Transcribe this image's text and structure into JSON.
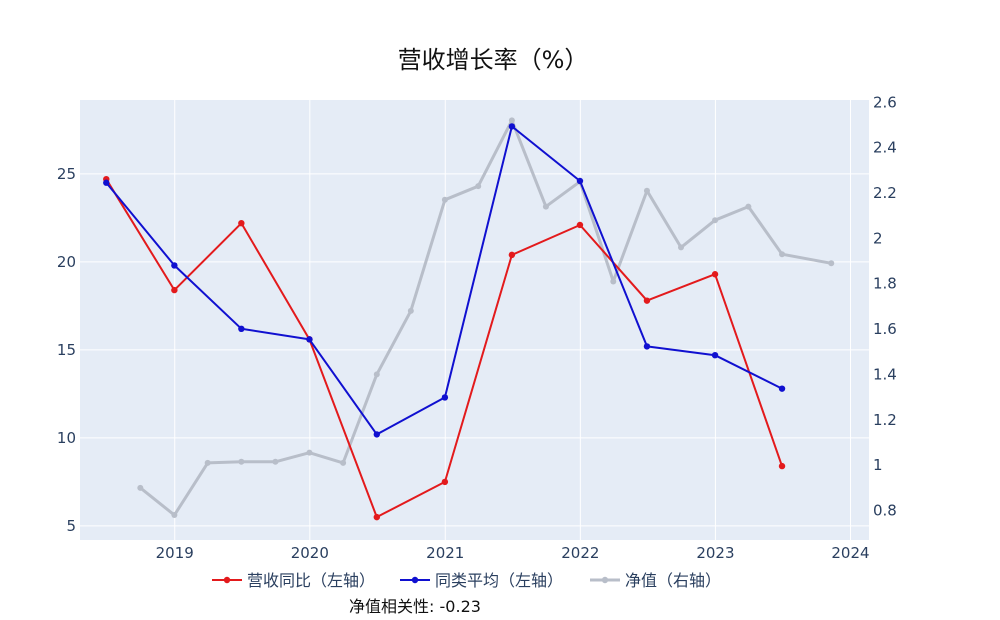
{
  "chart_data": {
    "type": "line",
    "title": "营收增长率（%）",
    "annotation": "净值相关性: -0.23",
    "x_axis": {
      "type": "date",
      "ticks": [
        "2019",
        "2020",
        "2021",
        "2022",
        "2023",
        "2024"
      ],
      "range": [
        "2018-04-20",
        "2024-02-20"
      ]
    },
    "y_left": {
      "ticks": [
        "5",
        "10",
        "15",
        "20",
        "25"
      ],
      "range": [
        4.2,
        29.2
      ]
    },
    "y_right": {
      "ticks": [
        "0.8",
        "1",
        "1.2",
        "1.4",
        "1.6",
        "1.8",
        "2",
        "2.2",
        "2.4",
        "2.6"
      ],
      "range": [
        0.67,
        2.61
      ]
    },
    "grid": true,
    "legend_position": "bottom",
    "series": [
      {
        "name": "营收同比（左轴）",
        "axis": "left",
        "color": "#e31a1c",
        "x": [
          "2018-06-30",
          "2018-12-31",
          "2019-06-30",
          "2019-12-31",
          "2020-06-30",
          "2020-12-31",
          "2021-06-30",
          "2021-12-31",
          "2022-06-30",
          "2022-12-31",
          "2023-06-30"
        ],
        "y": [
          24.7,
          18.4,
          22.2,
          15.6,
          5.5,
          7.5,
          20.4,
          22.1,
          17.8,
          19.3,
          8.4
        ]
      },
      {
        "name": "同类平均（左轴）",
        "axis": "left",
        "color": "#1010d0",
        "x": [
          "2018-06-30",
          "2018-12-31",
          "2019-06-30",
          "2019-12-31",
          "2020-06-30",
          "2020-12-31",
          "2021-06-30",
          "2021-12-31",
          "2022-06-30",
          "2022-12-31",
          "2023-06-30"
        ],
        "y": [
          24.5,
          19.8,
          16.2,
          15.6,
          10.2,
          12.3,
          27.7,
          24.6,
          15.2,
          14.7,
          12.8
        ]
      },
      {
        "name": "净值（右轴）",
        "axis": "right",
        "color": "#b8bec9",
        "x": [
          "2018-09-30",
          "2018-12-31",
          "2019-03-31",
          "2019-06-30",
          "2019-09-30",
          "2019-12-31",
          "2020-03-31",
          "2020-06-30",
          "2020-09-30",
          "2020-12-31",
          "2021-03-31",
          "2021-06-30",
          "2021-09-30",
          "2021-12-31",
          "2022-03-31",
          "2022-06-30",
          "2022-09-30",
          "2022-12-31",
          "2023-03-31",
          "2023-06-30",
          "2023-11-10"
        ],
        "y": [
          0.9,
          0.78,
          1.01,
          1.015,
          1.015,
          1.055,
          1.01,
          1.4,
          1.68,
          2.17,
          2.23,
          2.52,
          2.14,
          2.25,
          1.81,
          2.21,
          1.96,
          2.08,
          2.14,
          1.93,
          1.89
        ]
      }
    ]
  }
}
